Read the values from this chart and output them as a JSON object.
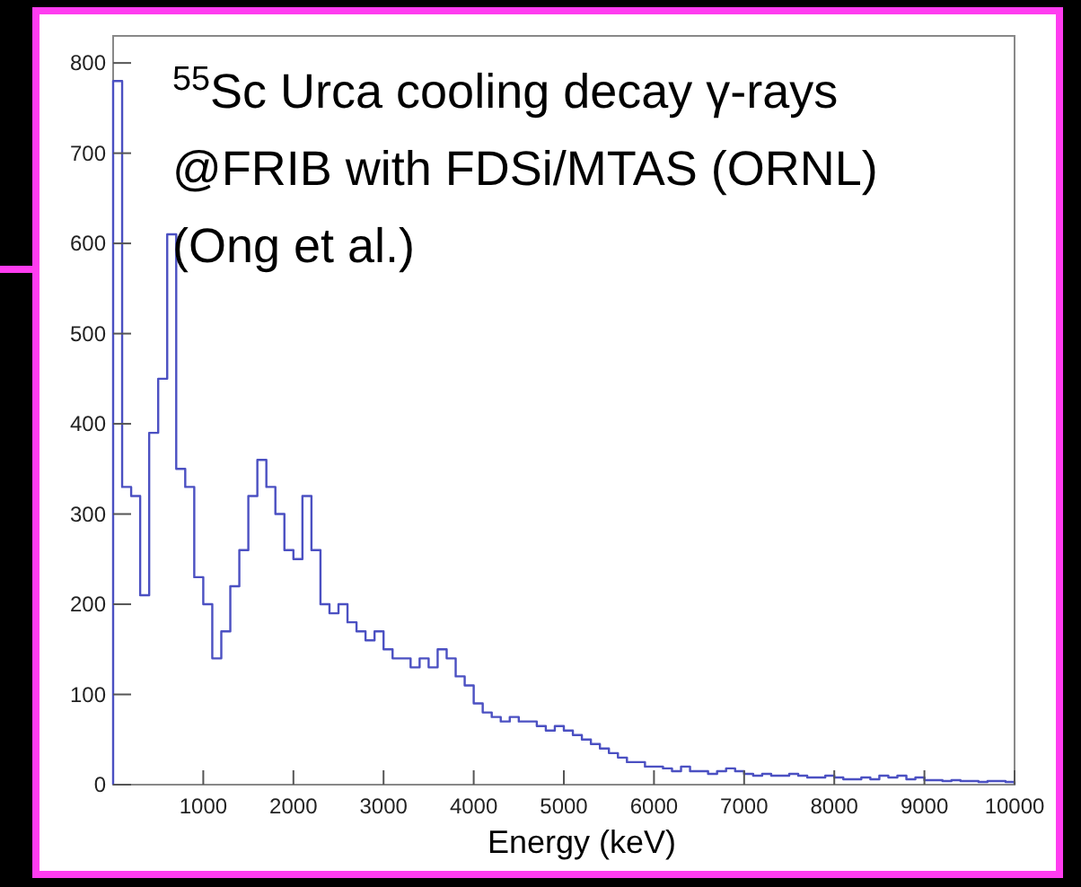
{
  "chart_data": {
    "type": "histogram",
    "xlabel": "Energy (keV)",
    "annotations": [
      "$^{55}$Sc Urca cooling decay γ-rays",
      "@FRIB with FDSi/MTAS (ORNL)",
      "(Ong et al.)"
    ],
    "bins": [
      0,
      100,
      200,
      300,
      400,
      500,
      600,
      700,
      800,
      900,
      1000,
      1100,
      1200,
      1300,
      1400,
      1500,
      1600,
      1700,
      1800,
      1900,
      2000,
      2100,
      2200,
      2300,
      2400,
      2500,
      2600,
      2700,
      2800,
      2900,
      3000,
      3100,
      3200,
      3300,
      3400,
      3500,
      3600,
      3700,
      3800,
      3900,
      4000,
      4100,
      4200,
      4300,
      4400,
      4500,
      4600,
      4700,
      4800,
      4900,
      5000,
      5100,
      5200,
      5300,
      5400,
      5500,
      5600,
      5700,
      5800,
      5900,
      6000,
      6100,
      6200,
      6300,
      6400,
      6500,
      6600,
      6700,
      6800,
      6900,
      7000,
      7100,
      7200,
      7300,
      7400,
      7500,
      7600,
      7700,
      7800,
      7900,
      8000,
      8100,
      8200,
      8300,
      8400,
      8500,
      8600,
      8700,
      8800,
      8900,
      9000,
      9100,
      9200,
      9300,
      9400,
      9500,
      9600,
      9700,
      9800,
      9900,
      10000
    ],
    "values": [
      780,
      330,
      320,
      210,
      390,
      450,
      610,
      350,
      330,
      230,
      200,
      140,
      170,
      220,
      260,
      320,
      360,
      330,
      300,
      260,
      250,
      320,
      260,
      200,
      190,
      200,
      180,
      170,
      160,
      170,
      150,
      140,
      140,
      130,
      140,
      130,
      150,
      140,
      120,
      110,
      90,
      80,
      75,
      70,
      75,
      70,
      70,
      65,
      60,
      65,
      60,
      55,
      50,
      45,
      40,
      35,
      30,
      25,
      25,
      20,
      20,
      18,
      15,
      20,
      15,
      15,
      12,
      15,
      18,
      15,
      12,
      10,
      12,
      10,
      10,
      12,
      10,
      8,
      8,
      10,
      8,
      6,
      6,
      8,
      6,
      10,
      8,
      10,
      6,
      8,
      5,
      5,
      4,
      5,
      4,
      4,
      3,
      4,
      4,
      3
    ],
    "color": "#4b50c2",
    "xlim": [
      0,
      10000
    ],
    "xticks": [
      1000,
      2000,
      3000,
      4000,
      5000,
      6000,
      7000,
      8000,
      9000,
      10000
    ],
    "ylim": [
      0,
      830
    ],
    "yticks": [
      0,
      100,
      200,
      300,
      400,
      500,
      600,
      700,
      800
    ],
    "grid": false
  }
}
